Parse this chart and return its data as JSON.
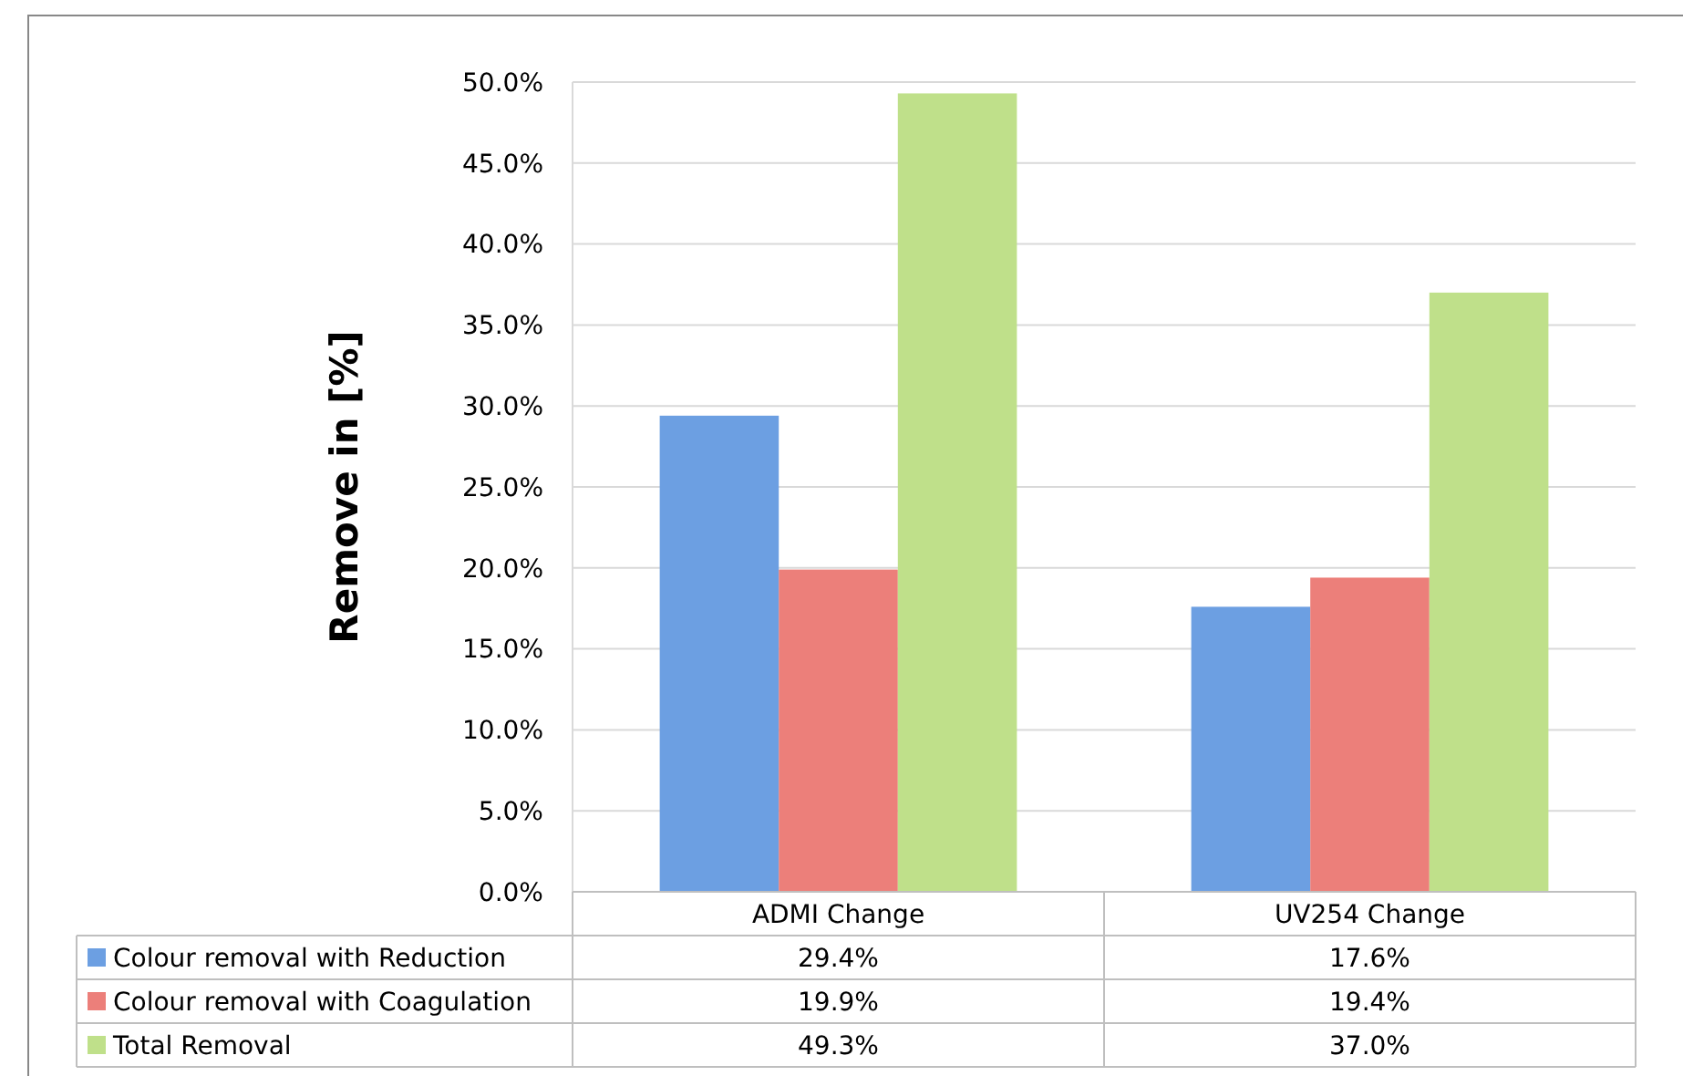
{
  "chart_data": {
    "type": "bar",
    "ylabel": "Remove in [%]",
    "categories": [
      "ADMI Change",
      "UV254 Change"
    ],
    "series": [
      {
        "name": "Colour removal with Reduction",
        "color": "#6c9fe2",
        "values": [
          29.4,
          17.6
        ],
        "value_labels": [
          "29.4%",
          "17.6%"
        ]
      },
      {
        "name": "Colour removal with Coagulation",
        "color": "#ec7f7a",
        "values": [
          19.9,
          19.4
        ],
        "value_labels": [
          "19.9%",
          "19.4%"
        ]
      },
      {
        "name": "Total Removal",
        "color": "#bfe08a",
        "values": [
          49.3,
          37.0
        ],
        "value_labels": [
          "49.3%",
          "37.0%"
        ]
      }
    ],
    "ylim": [
      0,
      50
    ],
    "yticks": [
      {
        "value": 0,
        "label": "0.0%"
      },
      {
        "value": 5,
        "label": "5.0%"
      },
      {
        "value": 10,
        "label": "10.0%"
      },
      {
        "value": 15,
        "label": "15.0%"
      },
      {
        "value": 20,
        "label": "20.0%"
      },
      {
        "value": 25,
        "label": "25.0%"
      },
      {
        "value": 30,
        "label": "30.0%"
      },
      {
        "value": 35,
        "label": "35.0%"
      },
      {
        "value": 40,
        "label": "40.0%"
      },
      {
        "value": 45,
        "label": "45.0%"
      },
      {
        "value": 50,
        "label": "50.0%"
      }
    ],
    "grid": "y",
    "legend": "bottom"
  }
}
